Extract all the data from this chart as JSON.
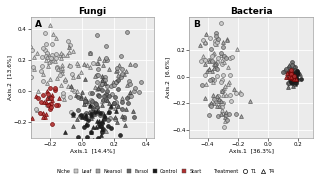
{
  "title_A": "Fungi",
  "title_B": "Bacteria",
  "label_A": "A",
  "label_B": "B",
  "xaxis_A": "Axis.1  [14.4%]",
  "yaxis_A": "Axis.2  [13.6%]",
  "xaxis_B": "Axis.1  [36.3%]",
  "yaxis_B": "Axis.2  [6.6%]",
  "xlim_A": [
    -0.32,
    0.45
  ],
  "ylim_A": [
    -0.3,
    0.48
  ],
  "xlim_B": [
    -0.52,
    0.3
  ],
  "ylim_B": [
    -0.46,
    0.45
  ],
  "xticks_A": [
    -0.2,
    0.0,
    0.2,
    0.4
  ],
  "yticks_A": [
    -0.2,
    0.0,
    0.2,
    0.4
  ],
  "xticks_B": [
    -0.4,
    -0.2,
    0.0,
    0.2
  ],
  "yticks_B": [
    -0.4,
    -0.2,
    0.0,
    0.2
  ],
  "colors": {
    "Leaf": "#c8c8c8",
    "Nearsol": "#a0a0a0",
    "Farsol": "#686868",
    "Control": "#1a1a1a",
    "Start": "#b03030"
  },
  "legend_niche": [
    "Leaf",
    "Nearsol",
    "Farsol",
    "Control",
    "Start"
  ],
  "legend_niche_colors": [
    "#c8c8c8",
    "#a0a0a0",
    "#686868",
    "#1a1a1a",
    "#b03030"
  ],
  "legend_treatment": [
    "T1",
    "T4"
  ],
  "bg_color": "#ebebeb",
  "marker_size": 2.8,
  "linewidth": 0.5
}
